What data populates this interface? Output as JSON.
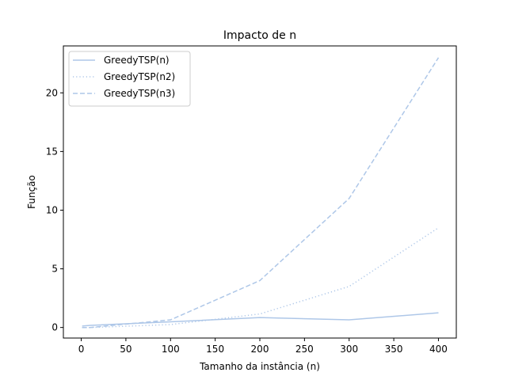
{
  "chart_data": {
    "type": "line",
    "title": "Impacto de n",
    "xlabel": "Tamanho da instância (n)",
    "ylabel": "Função",
    "xlim": [
      -20,
      420
    ],
    "ylim": [
      -0.9,
      24.0
    ],
    "xticks": [
      0,
      50,
      100,
      150,
      200,
      250,
      300,
      350,
      400
    ],
    "yticks": [
      0,
      5,
      10,
      15,
      20
    ],
    "grid": false,
    "legend": "top-left",
    "x": [
      1,
      10,
      100,
      200,
      300,
      400
    ],
    "series": [
      {
        "name": "GreedyTSP(n)",
        "style": "solid",
        "color": "#aec7e8",
        "values": [
          0.12,
          0.18,
          0.48,
          0.85,
          0.65,
          1.25
        ]
      },
      {
        "name": "GreedyTSP(n2)",
        "style": "dotted",
        "color": "#aec7e8",
        "values": [
          0.0,
          0.0,
          0.25,
          1.15,
          3.5,
          8.5
        ]
      },
      {
        "name": "GreedyTSP(n3)",
        "style": "dashed",
        "color": "#aec7e8",
        "values": [
          0.0,
          0.0,
          0.65,
          4.0,
          11.0,
          23.0
        ]
      }
    ]
  }
}
